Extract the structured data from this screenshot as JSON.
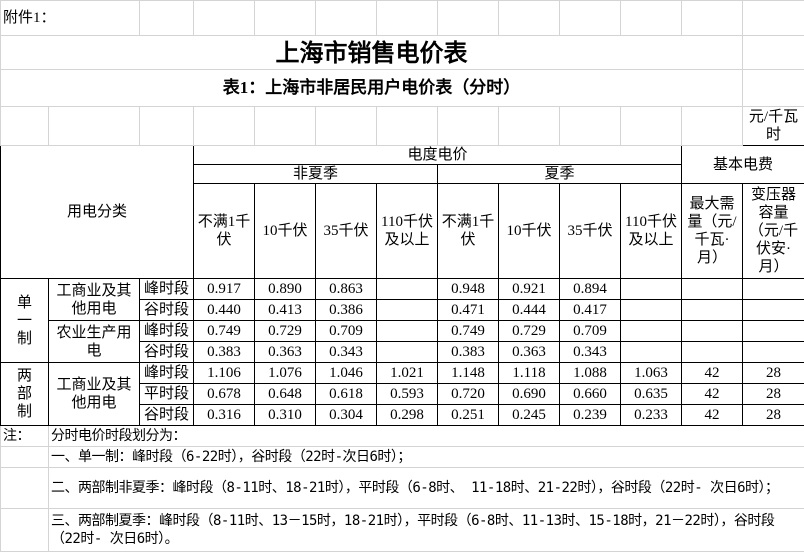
{
  "attachment": "附件1：",
  "title": "上海市销售电价表",
  "subtitle": "表1：上海市非居民用户电价表（分时）",
  "unit": "元/千瓦时",
  "header": {
    "category": "用电分类",
    "energy_price": "电度电价",
    "basic_fee": "基本电费",
    "non_summer": "非夏季",
    "summer": "夏季",
    "voltage_levels": [
      "不满1千伏",
      "10千伏",
      "35千伏",
      "110千伏及以上"
    ],
    "max_demand": "最大需量（元/千瓦·月）",
    "transformer_capacity": "变压器容量（元/千伏安·月）"
  },
  "groups": [
    {
      "system": "单一制",
      "categories": [
        {
          "name": "工商业及其他用电",
          "rows": [
            {
              "period": "峰时段",
              "values": [
                "0.917",
                "0.890",
                "0.863",
                "",
                "0.948",
                "0.921",
                "0.894",
                "",
                "",
                ""
              ]
            },
            {
              "period": "谷时段",
              "values": [
                "0.440",
                "0.413",
                "0.386",
                "",
                "0.471",
                "0.444",
                "0.417",
                "",
                "",
                ""
              ]
            }
          ]
        },
        {
          "name": "农业生产用电",
          "rows": [
            {
              "period": "峰时段",
              "values": [
                "0.749",
                "0.729",
                "0.709",
                "",
                "0.749",
                "0.729",
                "0.709",
                "",
                "",
                ""
              ]
            },
            {
              "period": "谷时段",
              "values": [
                "0.383",
                "0.363",
                "0.343",
                "",
                "0.383",
                "0.363",
                "0.343",
                "",
                "",
                ""
              ]
            }
          ]
        }
      ]
    },
    {
      "system": "两部制",
      "categories": [
        {
          "name": "工商业及其他用电",
          "rows": [
            {
              "period": "峰时段",
              "values": [
                "1.106",
                "1.076",
                "1.046",
                "1.021",
                "1.148",
                "1.118",
                "1.088",
                "1.063",
                "42",
                "28"
              ]
            },
            {
              "period": "平时段",
              "values": [
                "0.678",
                "0.648",
                "0.618",
                "0.593",
                "0.720",
                "0.690",
                "0.660",
                "0.635",
                "42",
                "28"
              ]
            },
            {
              "period": "谷时段",
              "values": [
                "0.316",
                "0.310",
                "0.304",
                "0.298",
                "0.251",
                "0.245",
                "0.239",
                "0.233",
                "42",
                "28"
              ]
            }
          ]
        }
      ]
    }
  ],
  "notes": {
    "label": "注：",
    "lines": [
      "分时电价时段划分为：",
      "一、单一制：峰时段（6-22时），谷时段（22时-次日6时）；",
      "二、两部制非夏季：峰时段（8-11时、18-21时），平时段（6-8时、 11-18时、21-22时），谷时段（22时- 次日6时）；",
      "三、两部制夏季：峰时段（8-11时、13－15时，18-21时），平时段（6-8时、11-13时、15-18时，21－22时），谷时段（22时- 次日6时）。"
    ]
  }
}
